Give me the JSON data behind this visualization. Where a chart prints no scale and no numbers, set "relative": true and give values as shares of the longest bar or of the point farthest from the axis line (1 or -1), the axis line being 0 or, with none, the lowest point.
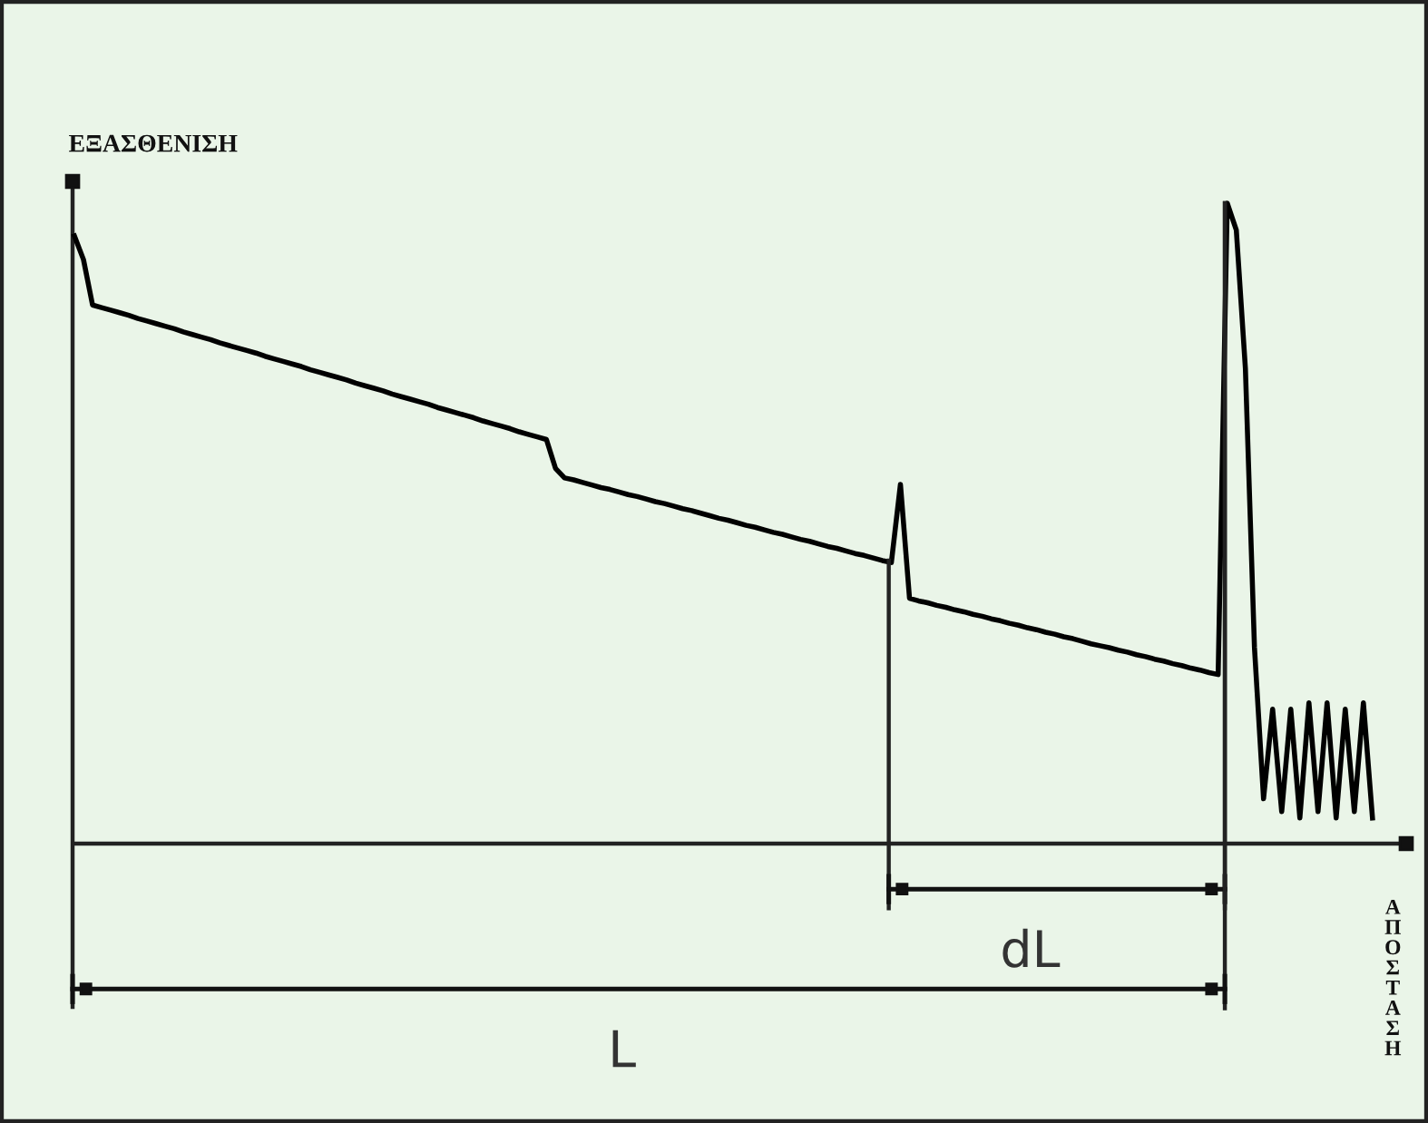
{
  "chart_data": {
    "type": "line",
    "relative": true,
    "ylabel": "ΕΞΑΣΘΕΝΙΣΗ",
    "xlabel": "ΑΠΟΣΤΑΣΗ",
    "categories": [
      null,
      null,
      null,
      null,
      null,
      null,
      null,
      null,
      null,
      null,
      null,
      null,
      null,
      null,
      null,
      null,
      null,
      null,
      null,
      null,
      null,
      null,
      null,
      null,
      null,
      null,
      null,
      null,
      null,
      null,
      null,
      null,
      null,
      null,
      null,
      null,
      null,
      null,
      null,
      null,
      null,
      null,
      null,
      null,
      null,
      null,
      null,
      null,
      null,
      null,
      null,
      null,
      null,
      null,
      null,
      null,
      null,
      null,
      null,
      null,
      null,
      null,
      null,
      null,
      null,
      null,
      null,
      null,
      null,
      null,
      null,
      null,
      null,
      null,
      null,
      null,
      null,
      null,
      null,
      null,
      null,
      null,
      null,
      null,
      null,
      null,
      null,
      null,
      null,
      null,
      null,
      null,
      null,
      null,
      null,
      null,
      null,
      null,
      null,
      null,
      null,
      null,
      null,
      null,
      null,
      null,
      null,
      null,
      null,
      null,
      null,
      null,
      null,
      null,
      null,
      null,
      null,
      null,
      null,
      null,
      null,
      null,
      null,
      null,
      null,
      null,
      null,
      null,
      null,
      null,
      null,
      null,
      null,
      null,
      null,
      null,
      null,
      null,
      null,
      null,
      null,
      null,
      null,
      null
    ],
    "series": [
      {
        "color": "#000000",
        "values": [
          0.949,
          0.912,
          0.841,
          0.837,
          0.833,
          0.829,
          0.825,
          0.82,
          0.816,
          0.812,
          0.808,
          0.804,
          0.799,
          0.795,
          0.791,
          0.787,
          0.782,
          0.778,
          0.774,
          0.77,
          0.766,
          0.761,
          0.757,
          0.753,
          0.749,
          0.745,
          0.74,
          0.736,
          0.732,
          0.728,
          0.724,
          0.719,
          0.715,
          0.711,
          0.707,
          0.702,
          0.698,
          0.694,
          0.69,
          0.686,
          0.681,
          0.677,
          0.673,
          0.669,
          0.665,
          0.66,
          0.656,
          0.652,
          0.648,
          0.643,
          0.639,
          0.635,
          0.631,
          0.586,
          0.571,
          0.568,
          0.564,
          0.56,
          0.556,
          0.553,
          0.549,
          0.545,
          0.542,
          0.538,
          0.534,
          0.531,
          0.527,
          0.523,
          0.52,
          0.516,
          0.512,
          0.508,
          0.505,
          0.501,
          0.497,
          0.494,
          0.49,
          0.486,
          0.483,
          0.479,
          0.475,
          0.472,
          0.468,
          0.464,
          0.461,
          0.457,
          0.453,
          0.45,
          0.446,
          0.442,
          0.439,
          0.561,
          0.383,
          0.379,
          0.376,
          0.372,
          0.369,
          0.365,
          0.362,
          0.358,
          0.355,
          0.351,
          0.348,
          0.344,
          0.341,
          0.337,
          0.334,
          0.33,
          0.327,
          0.323,
          0.32,
          0.316,
          0.312,
          0.309,
          0.306,
          0.302,
          0.299,
          0.295,
          0.292,
          0.288,
          0.285,
          0.281,
          0.278,
          0.274,
          0.271,
          0.267,
          0.264,
          1.0,
          0.958,
          0.742,
          0.306,
          0.07,
          0.21,
          0.05,
          0.21,
          0.04,
          0.22,
          0.05,
          0.22,
          0.04,
          0.21,
          0.05,
          0.22,
          0.04
        ]
      }
    ],
    "annotations": [
      "dL",
      "L"
    ]
  }
}
